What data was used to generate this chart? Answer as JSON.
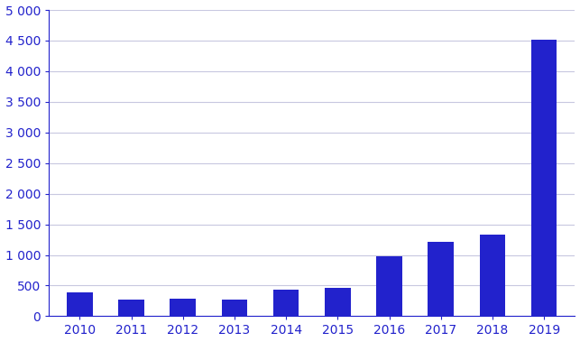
{
  "years": [
    "2010",
    "2011",
    "2012",
    "2013",
    "2014",
    "2015",
    "2016",
    "2017",
    "2018",
    "2019"
  ],
  "values": [
    390,
    270,
    285,
    265,
    430,
    460,
    985,
    1215,
    1325,
    4510
  ],
  "bar_color": "#2222cc",
  "background_color": "#ffffff",
  "plot_bg_color": "#ffffff",
  "ylim": [
    0,
    5000
  ],
  "yticks": [
    0,
    500,
    1000,
    1500,
    2000,
    2500,
    3000,
    3500,
    4000,
    4500,
    5000
  ],
  "ytick_labels": [
    "0",
    "500",
    "1 000",
    "1 500",
    "2 000",
    "2 500",
    "3 000",
    "3 500",
    "4 000",
    "4 500",
    "5 000"
  ],
  "grid_color": "#c8c8e0",
  "tick_color": "#2222cc",
  "tick_fontsize": 10,
  "bar_width": 0.5
}
